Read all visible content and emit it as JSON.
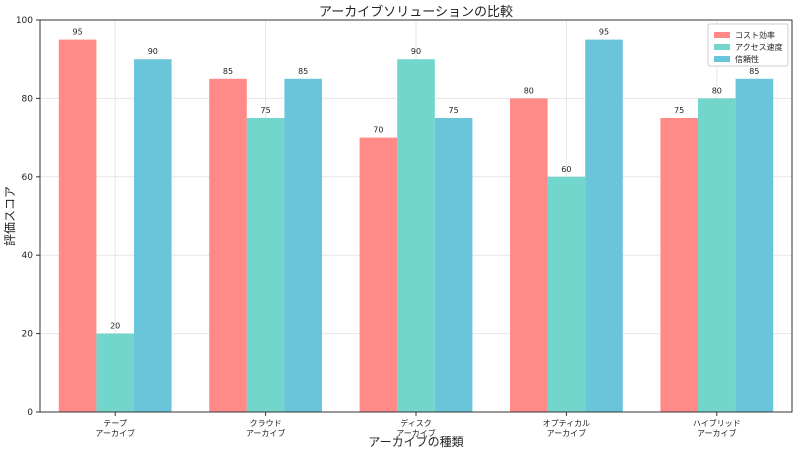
{
  "chart_data": {
    "type": "bar",
    "title": "アーカイブソリューションの比較",
    "xlabel": "アーカイブの種類",
    "ylabel": "評価スコア",
    "ylim": [
      0,
      100
    ],
    "yticks": [
      0,
      20,
      40,
      60,
      80,
      100
    ],
    "grid": true,
    "legend_position": "top-right",
    "categories": [
      [
        "テープ",
        "アーカイブ"
      ],
      [
        "クラウド",
        "アーカイブ"
      ],
      [
        "ディスク",
        "アーカイブ"
      ],
      [
        "オプティカル",
        "アーカイブ"
      ],
      [
        "ハイブリッド",
        "アーカイブ"
      ]
    ],
    "series": [
      {
        "name": "コスト効率",
        "color": "#ff8a87",
        "values": [
          95,
          85,
          70,
          80,
          75
        ]
      },
      {
        "name": "アクセス速度",
        "color": "#72d6cc",
        "values": [
          20,
          75,
          90,
          60,
          80
        ]
      },
      {
        "name": "信頼性",
        "color": "#6ac4da",
        "values": [
          90,
          85,
          75,
          95,
          85
        ]
      }
    ]
  }
}
